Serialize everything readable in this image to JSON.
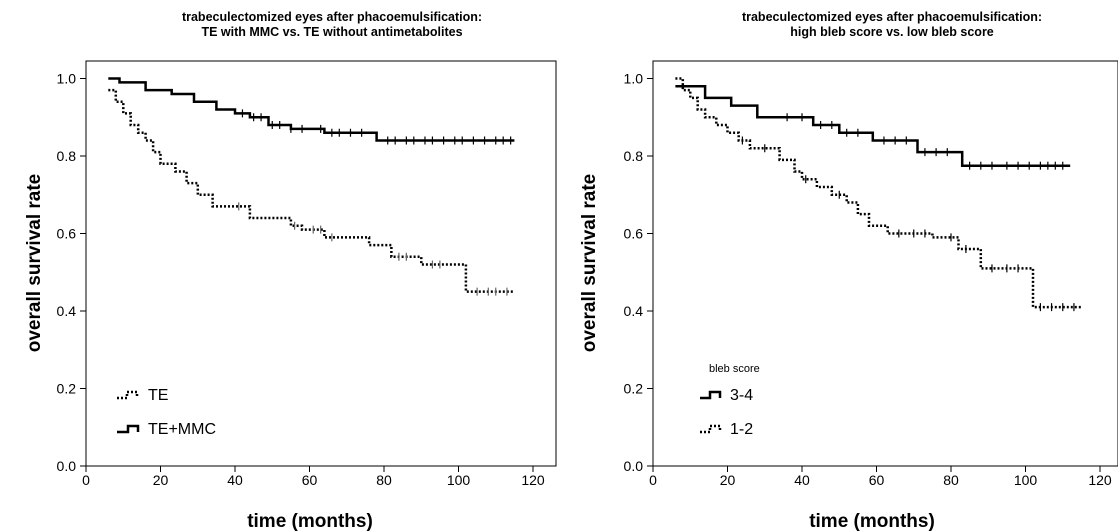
{
  "chart_data": [
    {
      "type": "line",
      "title_lines": [
        "trabeculectomized eyes after phacoemulsification:",
        "TE with MMC vs. TE without antimetabolites"
      ],
      "xlabel": "time (months)",
      "ylabel": "overall survival rate",
      "xlim": [
        0,
        125
      ],
      "ylim": [
        0.0,
        1.05
      ],
      "xticks": [
        "0",
        "20",
        "40",
        "60",
        "80",
        "100",
        "120"
      ],
      "yticks": [
        "0.0",
        "0.2",
        "0.4",
        "0.6",
        "0.8",
        "1.0"
      ],
      "grid": false,
      "legend_position": "bottom-left",
      "series": [
        {
          "name": "TE",
          "style": "dotted",
          "color": "#000000",
          "censor_color": "#666666",
          "x": [
            6,
            8,
            10,
            12,
            14,
            16,
            18,
            20,
            24,
            27,
            30,
            34,
            38,
            41,
            44,
            48,
            55,
            58,
            64,
            68,
            76,
            78,
            82,
            86,
            90,
            102,
            115
          ],
          "y": [
            0.97,
            0.94,
            0.91,
            0.88,
            0.86,
            0.84,
            0.81,
            0.78,
            0.76,
            0.73,
            0.7,
            0.67,
            0.67,
            0.67,
            0.64,
            0.64,
            0.62,
            0.61,
            0.59,
            0.59,
            0.57,
            0.57,
            0.54,
            0.54,
            0.52,
            0.45,
            0.45
          ],
          "censored": [
            41,
            56,
            61,
            63,
            66,
            84,
            86,
            93,
            95,
            105,
            108,
            110,
            113
          ]
        },
        {
          "name": "TE+MMC",
          "style": "solid",
          "color": "#000000",
          "censor_color": "#000000",
          "x": [
            6,
            9,
            16,
            23,
            29,
            35,
            40,
            44,
            49,
            55,
            64,
            78,
            115
          ],
          "y": [
            1.0,
            0.99,
            0.97,
            0.96,
            0.94,
            0.92,
            0.91,
            0.9,
            0.88,
            0.87,
            0.86,
            0.84,
            0.84
          ],
          "censored": [
            42,
            45,
            47,
            50,
            52,
            55,
            58,
            63,
            66,
            68,
            71,
            74,
            81,
            83,
            86,
            88,
            91,
            93,
            96,
            99,
            101,
            104,
            107,
            110,
            112,
            114
          ]
        }
      ]
    },
    {
      "type": "line",
      "title_lines": [
        "trabeculectomized eyes after phacoemulsification:",
        "high bleb score vs. low bleb score"
      ],
      "xlabel": "time (months)",
      "ylabel": "overall survival rate",
      "xlim": [
        0,
        125
      ],
      "ylim": [
        0.0,
        1.05
      ],
      "xticks": [
        "0",
        "20",
        "40",
        "60",
        "80",
        "100",
        "120"
      ],
      "yticks": [
        "0.0",
        "0.2",
        "0.4",
        "0.6",
        "0.8",
        "1.0"
      ],
      "grid": false,
      "legend_title": "bleb score",
      "legend_position": "bottom-left",
      "series": [
        {
          "name": "3-4",
          "style": "solid",
          "color": "#000000",
          "censor_color": "#000000",
          "x": [
            6,
            8,
            14,
            21,
            28,
            43,
            50,
            59,
            71,
            83,
            112
          ],
          "y": [
            0.98,
            0.98,
            0.95,
            0.93,
            0.9,
            0.88,
            0.86,
            0.84,
            0.81,
            0.775,
            0.775
          ],
          "censored": [
            36,
            40,
            45,
            48,
            52,
            55,
            62,
            65,
            68,
            73,
            76,
            79,
            85,
            88,
            91,
            95,
            98,
            101,
            104,
            106,
            108,
            110
          ]
        },
        {
          "name": "1-2",
          "style": "dotted",
          "color": "#000000",
          "censor_color": "#000000",
          "x": [
            6,
            8,
            10,
            12,
            14,
            17,
            20,
            23,
            26,
            30,
            34,
            38,
            40,
            44,
            48,
            52,
            55,
            58,
            63,
            75,
            82,
            88,
            102,
            115
          ],
          "y": [
            1.0,
            0.97,
            0.95,
            0.92,
            0.9,
            0.88,
            0.86,
            0.84,
            0.82,
            0.82,
            0.79,
            0.76,
            0.74,
            0.72,
            0.7,
            0.68,
            0.65,
            0.62,
            0.6,
            0.59,
            0.56,
            0.51,
            0.41,
            0.41
          ],
          "censored": [
            24,
            30,
            41,
            50,
            66,
            70,
            73,
            80,
            84,
            91,
            95,
            98,
            104,
            107,
            110,
            113
          ]
        }
      ]
    }
  ]
}
